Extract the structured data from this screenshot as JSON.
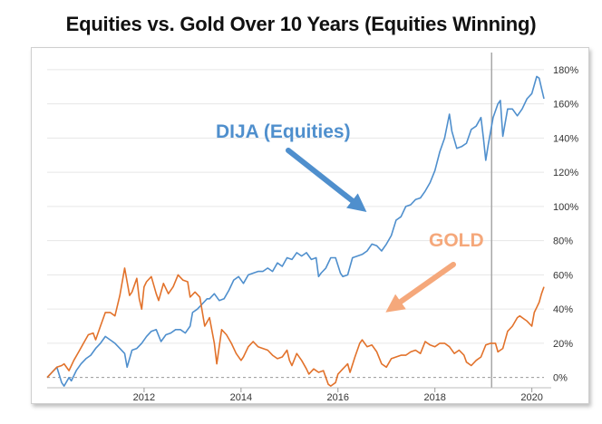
{
  "title": "Equities vs. Gold Over 10 Years (Equities Winning)",
  "chart_data": {
    "type": "line",
    "xlim": [
      2010.0,
      2020.25
    ],
    "ylim": [
      -6,
      190
    ],
    "x_ticks": [
      2012,
      2014,
      2016,
      2018,
      2020
    ],
    "x_tick_labels": [
      "2012",
      "2014",
      "2016",
      "2018",
      "2020"
    ],
    "y_ticks": [
      0,
      20,
      40,
      60,
      80,
      100,
      120,
      140,
      160,
      180
    ],
    "y_tick_labels": [
      "0%",
      "20%",
      "40%",
      "60%",
      "80%",
      "100%",
      "120%",
      "140%",
      "160%",
      "180%"
    ],
    "grid": "horizontal",
    "vertical_marker_x": 2019.17,
    "series": [
      {
        "color": "#4f8fcd",
        "points": [
          [
            2010.0,
            0
          ],
          [
            2010.1,
            3
          ],
          [
            2010.2,
            6
          ],
          [
            2010.3,
            -3
          ],
          [
            2010.35,
            -5
          ],
          [
            2010.45,
            0
          ],
          [
            2010.5,
            -2
          ],
          [
            2010.6,
            4
          ],
          [
            2010.7,
            8
          ],
          [
            2010.8,
            11
          ],
          [
            2010.9,
            13
          ],
          [
            2011.0,
            17
          ],
          [
            2011.1,
            20
          ],
          [
            2011.2,
            24
          ],
          [
            2011.3,
            22
          ],
          [
            2011.4,
            20
          ],
          [
            2011.5,
            17
          ],
          [
            2011.6,
            14
          ],
          [
            2011.65,
            6
          ],
          [
            2011.75,
            16
          ],
          [
            2011.85,
            17
          ],
          [
            2011.95,
            20
          ],
          [
            2012.05,
            24
          ],
          [
            2012.15,
            27
          ],
          [
            2012.25,
            28
          ],
          [
            2012.35,
            21
          ],
          [
            2012.45,
            25
          ],
          [
            2012.55,
            26
          ],
          [
            2012.65,
            28
          ],
          [
            2012.75,
            28
          ],
          [
            2012.85,
            26
          ],
          [
            2012.95,
            30
          ],
          [
            2013.0,
            38
          ],
          [
            2013.1,
            40
          ],
          [
            2013.2,
            43
          ],
          [
            2013.3,
            46
          ],
          [
            2013.35,
            46
          ],
          [
            2013.45,
            49
          ],
          [
            2013.55,
            45
          ],
          [
            2013.65,
            46
          ],
          [
            2013.75,
            51
          ],
          [
            2013.85,
            57
          ],
          [
            2013.95,
            59
          ],
          [
            2014.05,
            55
          ],
          [
            2014.15,
            60
          ],
          [
            2014.25,
            61
          ],
          [
            2014.35,
            62
          ],
          [
            2014.45,
            62
          ],
          [
            2014.55,
            64
          ],
          [
            2014.65,
            62
          ],
          [
            2014.75,
            67
          ],
          [
            2014.85,
            65
          ],
          [
            2014.95,
            70
          ],
          [
            2015.05,
            69
          ],
          [
            2015.15,
            73
          ],
          [
            2015.25,
            71
          ],
          [
            2015.35,
            73
          ],
          [
            2015.45,
            69
          ],
          [
            2015.55,
            70
          ],
          [
            2015.6,
            59
          ],
          [
            2015.65,
            61
          ],
          [
            2015.75,
            64
          ],
          [
            2015.85,
            70
          ],
          [
            2015.95,
            70
          ],
          [
            2016.05,
            61
          ],
          [
            2016.1,
            59
          ],
          [
            2016.2,
            60
          ],
          [
            2016.3,
            70
          ],
          [
            2016.4,
            71
          ],
          [
            2016.5,
            72
          ],
          [
            2016.6,
            74
          ],
          [
            2016.7,
            78
          ],
          [
            2016.8,
            77
          ],
          [
            2016.9,
            74
          ],
          [
            2017.0,
            78
          ],
          [
            2017.1,
            83
          ],
          [
            2017.2,
            92
          ],
          [
            2017.3,
            94
          ],
          [
            2017.4,
            100
          ],
          [
            2017.5,
            101
          ],
          [
            2017.6,
            104
          ],
          [
            2017.7,
            105
          ],
          [
            2017.8,
            109
          ],
          [
            2017.9,
            114
          ],
          [
            2018.0,
            121
          ],
          [
            2018.1,
            132
          ],
          [
            2018.2,
            140
          ],
          [
            2018.3,
            154
          ],
          [
            2018.35,
            144
          ],
          [
            2018.45,
            134
          ],
          [
            2018.55,
            135
          ],
          [
            2018.65,
            137
          ],
          [
            2018.75,
            145
          ],
          [
            2018.85,
            147
          ],
          [
            2018.95,
            152
          ],
          [
            2019.0,
            140
          ],
          [
            2019.05,
            127
          ],
          [
            2019.1,
            136
          ],
          [
            2019.2,
            152
          ],
          [
            2019.3,
            160
          ],
          [
            2019.35,
            162
          ],
          [
            2019.4,
            141
          ],
          [
            2019.5,
            157
          ],
          [
            2019.6,
            157
          ],
          [
            2019.7,
            153
          ],
          [
            2019.8,
            157
          ],
          [
            2019.9,
            163
          ],
          [
            2020.0,
            166
          ],
          [
            2020.05,
            171
          ],
          [
            2020.1,
            176
          ],
          [
            2020.15,
            175
          ],
          [
            2020.2,
            169
          ],
          [
            2020.25,
            163
          ]
        ]
      },
      {
        "color": "#e2722b",
        "points": [
          [
            2010.0,
            0
          ],
          [
            2010.1,
            3
          ],
          [
            2010.2,
            6
          ],
          [
            2010.3,
            7
          ],
          [
            2010.35,
            8
          ],
          [
            2010.45,
            4
          ],
          [
            2010.55,
            10
          ],
          [
            2010.65,
            15
          ],
          [
            2010.75,
            20
          ],
          [
            2010.85,
            25
          ],
          [
            2010.95,
            26
          ],
          [
            2011.0,
            22
          ],
          [
            2011.1,
            30
          ],
          [
            2011.2,
            38
          ],
          [
            2011.3,
            38
          ],
          [
            2011.4,
            36
          ],
          [
            2011.5,
            48
          ],
          [
            2011.6,
            64
          ],
          [
            2011.7,
            48
          ],
          [
            2011.75,
            50
          ],
          [
            2011.85,
            58
          ],
          [
            2011.9,
            46
          ],
          [
            2011.95,
            40
          ],
          [
            2012.0,
            53
          ],
          [
            2012.05,
            56
          ],
          [
            2012.15,
            59
          ],
          [
            2012.25,
            49
          ],
          [
            2012.3,
            45
          ],
          [
            2012.4,
            55
          ],
          [
            2012.5,
            49
          ],
          [
            2012.6,
            53
          ],
          [
            2012.7,
            60
          ],
          [
            2012.8,
            57
          ],
          [
            2012.9,
            56
          ],
          [
            2012.95,
            47
          ],
          [
            2013.05,
            50
          ],
          [
            2013.15,
            47
          ],
          [
            2013.25,
            30
          ],
          [
            2013.35,
            35
          ],
          [
            2013.45,
            20
          ],
          [
            2013.5,
            8
          ],
          [
            2013.6,
            28
          ],
          [
            2013.7,
            25
          ],
          [
            2013.8,
            20
          ],
          [
            2013.9,
            14
          ],
          [
            2014.0,
            10
          ],
          [
            2014.05,
            12
          ],
          [
            2014.15,
            18
          ],
          [
            2014.25,
            21
          ],
          [
            2014.35,
            18
          ],
          [
            2014.45,
            17
          ],
          [
            2014.55,
            16
          ],
          [
            2014.65,
            13
          ],
          [
            2014.75,
            11
          ],
          [
            2014.85,
            12
          ],
          [
            2014.95,
            16
          ],
          [
            2015.0,
            10
          ],
          [
            2015.05,
            7
          ],
          [
            2015.15,
            14
          ],
          [
            2015.25,
            10
          ],
          [
            2015.35,
            5
          ],
          [
            2015.4,
            2
          ],
          [
            2015.5,
            5
          ],
          [
            2015.6,
            3
          ],
          [
            2015.7,
            4
          ],
          [
            2015.8,
            -4
          ],
          [
            2015.85,
            -5
          ],
          [
            2015.95,
            -3
          ],
          [
            2016.0,
            2
          ],
          [
            2016.1,
            5
          ],
          [
            2016.2,
            8
          ],
          [
            2016.25,
            3
          ],
          [
            2016.35,
            12
          ],
          [
            2016.45,
            20
          ],
          [
            2016.5,
            22
          ],
          [
            2016.6,
            18
          ],
          [
            2016.7,
            19
          ],
          [
            2016.8,
            15
          ],
          [
            2016.9,
            8
          ],
          [
            2017.0,
            6
          ],
          [
            2017.1,
            11
          ],
          [
            2017.2,
            12
          ],
          [
            2017.3,
            13
          ],
          [
            2017.4,
            13
          ],
          [
            2017.5,
            15
          ],
          [
            2017.6,
            16
          ],
          [
            2017.7,
            14
          ],
          [
            2017.8,
            21
          ],
          [
            2017.9,
            19
          ],
          [
            2018.0,
            18
          ],
          [
            2018.1,
            20
          ],
          [
            2018.2,
            20
          ],
          [
            2018.3,
            18
          ],
          [
            2018.4,
            14
          ],
          [
            2018.5,
            16
          ],
          [
            2018.6,
            13
          ],
          [
            2018.65,
            9
          ],
          [
            2018.75,
            7
          ],
          [
            2018.85,
            10
          ],
          [
            2018.95,
            12
          ],
          [
            2019.05,
            19
          ],
          [
            2019.15,
            20
          ],
          [
            2019.25,
            20
          ],
          [
            2019.3,
            15
          ],
          [
            2019.4,
            17
          ],
          [
            2019.5,
            27
          ],
          [
            2019.6,
            30
          ],
          [
            2019.7,
            35
          ],
          [
            2019.75,
            36
          ],
          [
            2019.85,
            34
          ],
          [
            2019.9,
            33
          ],
          [
            2020.0,
            30
          ],
          [
            2020.05,
            38
          ],
          [
            2020.1,
            41
          ],
          [
            2020.15,
            44
          ],
          [
            2020.2,
            49
          ],
          [
            2020.25,
            53
          ]
        ]
      }
    ],
    "annotations": [
      {
        "text": "DIJA (Equities)",
        "color": "#4f8fcd"
      },
      {
        "text": "GOLD",
        "color": "#f5a87b"
      }
    ]
  }
}
